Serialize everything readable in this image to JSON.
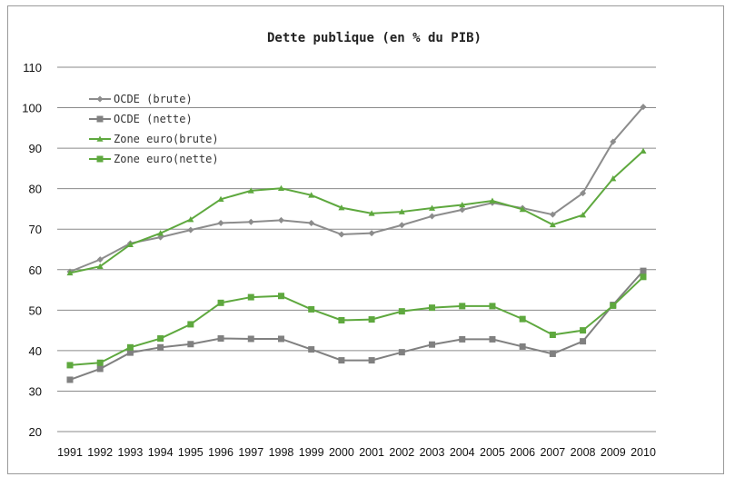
{
  "chart_data": {
    "type": "line",
    "title": "Dette publique (en % du PIB)",
    "xlabel": "",
    "ylabel": "",
    "ylim": [
      20,
      110
    ],
    "yticks": [
      20,
      30,
      40,
      50,
      60,
      70,
      80,
      90,
      100,
      110
    ],
    "grid": true,
    "legend_position": "top-left",
    "categories": [
      "1991",
      "1992",
      "1993",
      "1994",
      "1995",
      "1996",
      "1997",
      "1998",
      "1999",
      "2000",
      "2001",
      "2002",
      "2003",
      "2004",
      "2005",
      "2006",
      "2007",
      "2008",
      "2009",
      "2010"
    ],
    "series": [
      {
        "name": "OCDE (brute)",
        "color": "#8c8c8c",
        "marker": "diamond",
        "values": [
          59.5,
          62.5,
          66.5,
          68,
          69.8,
          71.5,
          71.8,
          72.2,
          71.5,
          68.7,
          69,
          71,
          73.2,
          74.8,
          76.5,
          75.2,
          73.6,
          78.9,
          91.6,
          100.2
        ]
      },
      {
        "name": "OCDE (nette)",
        "color": "#808080",
        "marker": "square",
        "values": [
          32.8,
          35.5,
          39.5,
          40.8,
          41.6,
          43,
          42.9,
          42.9,
          40.3,
          37.6,
          37.6,
          39.6,
          41.5,
          42.8,
          42.8,
          41,
          39.2,
          42.3,
          51.3,
          59.7
        ]
      },
      {
        "name": "Zone euro(brute)",
        "color": "#5ea83e",
        "marker": "triangle",
        "values": [
          59.2,
          60.8,
          66.2,
          69,
          72.4,
          77.4,
          79.5,
          80.1,
          78.4,
          75.3,
          73.9,
          74.3,
          75.2,
          76,
          77,
          74.9,
          71.1,
          73.5,
          82.5,
          89.3
        ]
      },
      {
        "name": "Zone euro(nette)",
        "color": "#5ea83e",
        "marker": "square",
        "values": [
          36.4,
          37,
          40.8,
          43,
          46.5,
          51.8,
          53.2,
          53.5,
          50.2,
          47.5,
          47.7,
          49.7,
          50.6,
          51,
          51,
          47.8,
          43.9,
          45,
          51.1,
          58.2
        ]
      }
    ]
  }
}
